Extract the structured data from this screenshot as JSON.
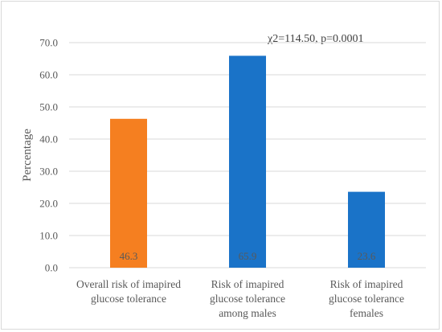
{
  "chart_data": {
    "type": "bar",
    "title": "",
    "xlabel": "",
    "ylabel": "Percentage",
    "ylim": [
      0,
      70
    ],
    "ytick_step": 10,
    "ytick_labels": [
      "0.0",
      "10.0",
      "20.0",
      "30.0",
      "40.0",
      "50.0",
      "60.0",
      "70.0"
    ],
    "grid": true,
    "legend": "none",
    "annotation": "χ2=114.50, p=0.0001",
    "categories": [
      [
        "Overall risk of imapired",
        "glucose tolerance"
      ],
      [
        "Risk of imapired",
        "glucose tolerance",
        "among males"
      ],
      [
        "Risk of imapired",
        "glucose tolerance",
        "females"
      ]
    ],
    "values": [
      46.3,
      65.9,
      23.6
    ],
    "data_labels": [
      "46.3",
      "65.9",
      "23.6"
    ],
    "colors": [
      "#f57f20",
      "#1a73c8",
      "#1a73c8"
    ],
    "grid_color": "#d9d9d9",
    "text_color": "#595959"
  }
}
